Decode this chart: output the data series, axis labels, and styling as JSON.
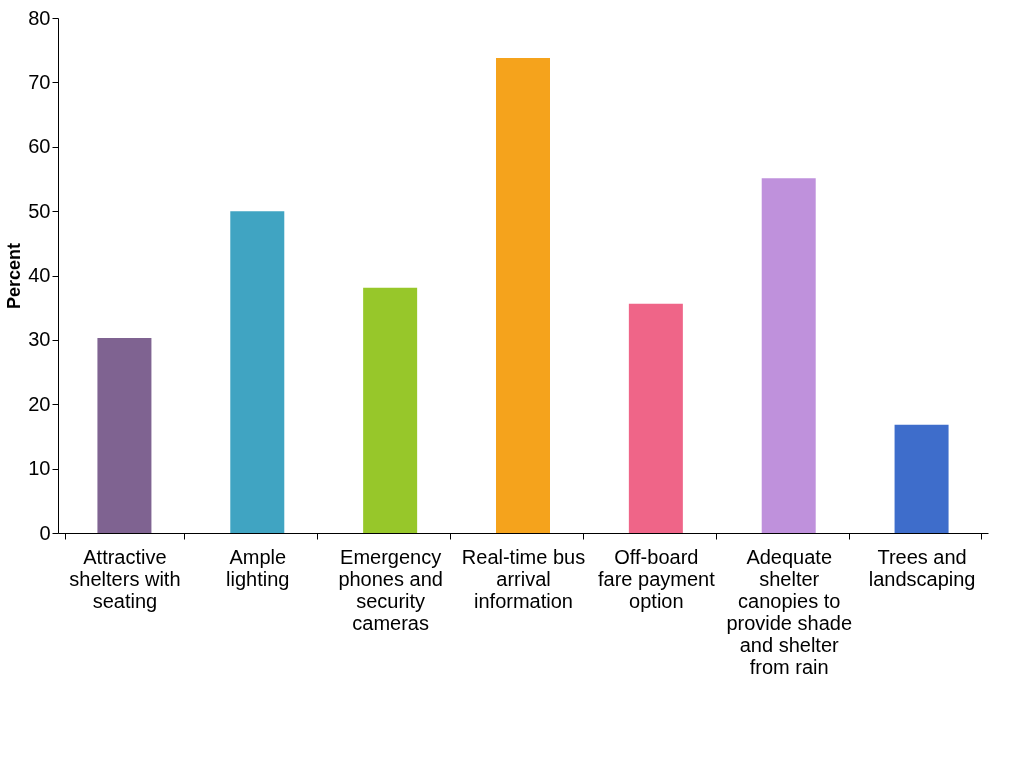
{
  "chart_data": {
    "type": "bar",
    "ylabel": "Percent",
    "categories": [
      "Attractive shelters with seating",
      "Ample lighting",
      "Emergency phones and security cameras",
      "Real-time bus arrival information",
      "Off-board fare payment option",
      "Adequate shelter canopies to provide shade and shelter from rain",
      "Trees and landscaping"
    ],
    "values": [
      30.3,
      50.0,
      38.1,
      73.8,
      35.6,
      55.1,
      16.8
    ],
    "colors": [
      "#7f6391",
      "#40a4c2",
      "#97c72a",
      "#f5a31c",
      "#ef6588",
      "#bf91dc",
      "#3e6dcb"
    ],
    "ylim": [
      0,
      80
    ],
    "yticks": [
      0,
      10,
      20,
      30,
      40,
      50,
      60,
      70,
      80
    ],
    "grid": false
  }
}
